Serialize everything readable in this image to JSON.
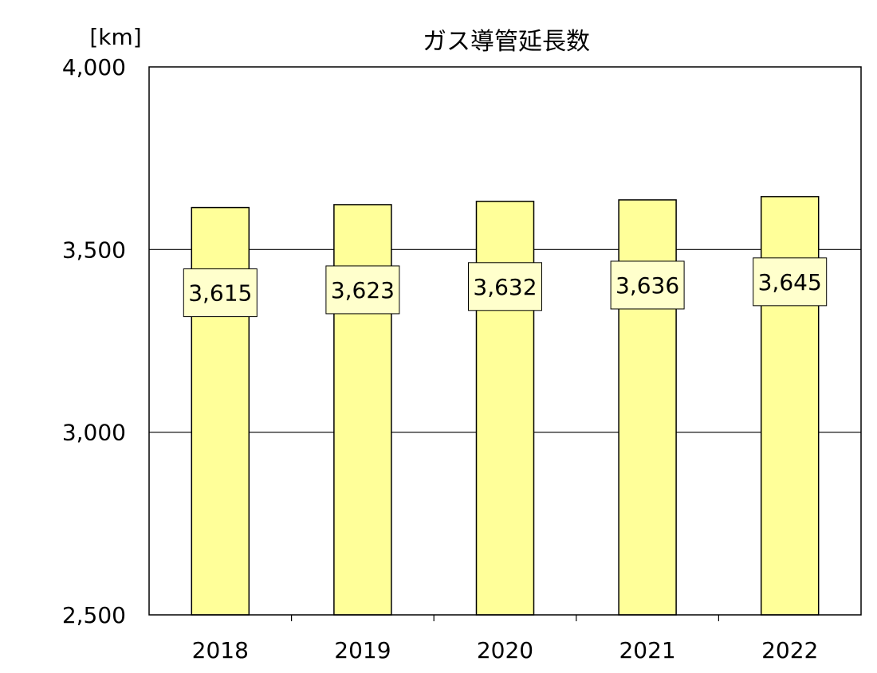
{
  "chart_data": {
    "type": "bar",
    "title": "ガス導管延長数",
    "unit_label": "[km]",
    "xlabel": "",
    "ylabel": "",
    "categories": [
      "2018",
      "2019",
      "2020",
      "2021",
      "2022"
    ],
    "values": [
      3615,
      3623,
      3632,
      3636,
      3645
    ],
    "data_labels": [
      "3,615",
      "3,623",
      "3,632",
      "3,636",
      "3,645"
    ],
    "ylim": [
      2500,
      4000
    ],
    "y_ticks": [
      2500,
      3000,
      3500,
      4000
    ],
    "y_tick_labels": [
      "2,500",
      "3,000",
      "3,500",
      "4,000"
    ],
    "grid": true,
    "legend": "none"
  },
  "colors": {
    "bar_fill": "#ffff99",
    "bar_stroke": "#000000",
    "label_box_fill": "#ffffcc",
    "plot_background": "#ffffff",
    "gridline": "#000000"
  }
}
